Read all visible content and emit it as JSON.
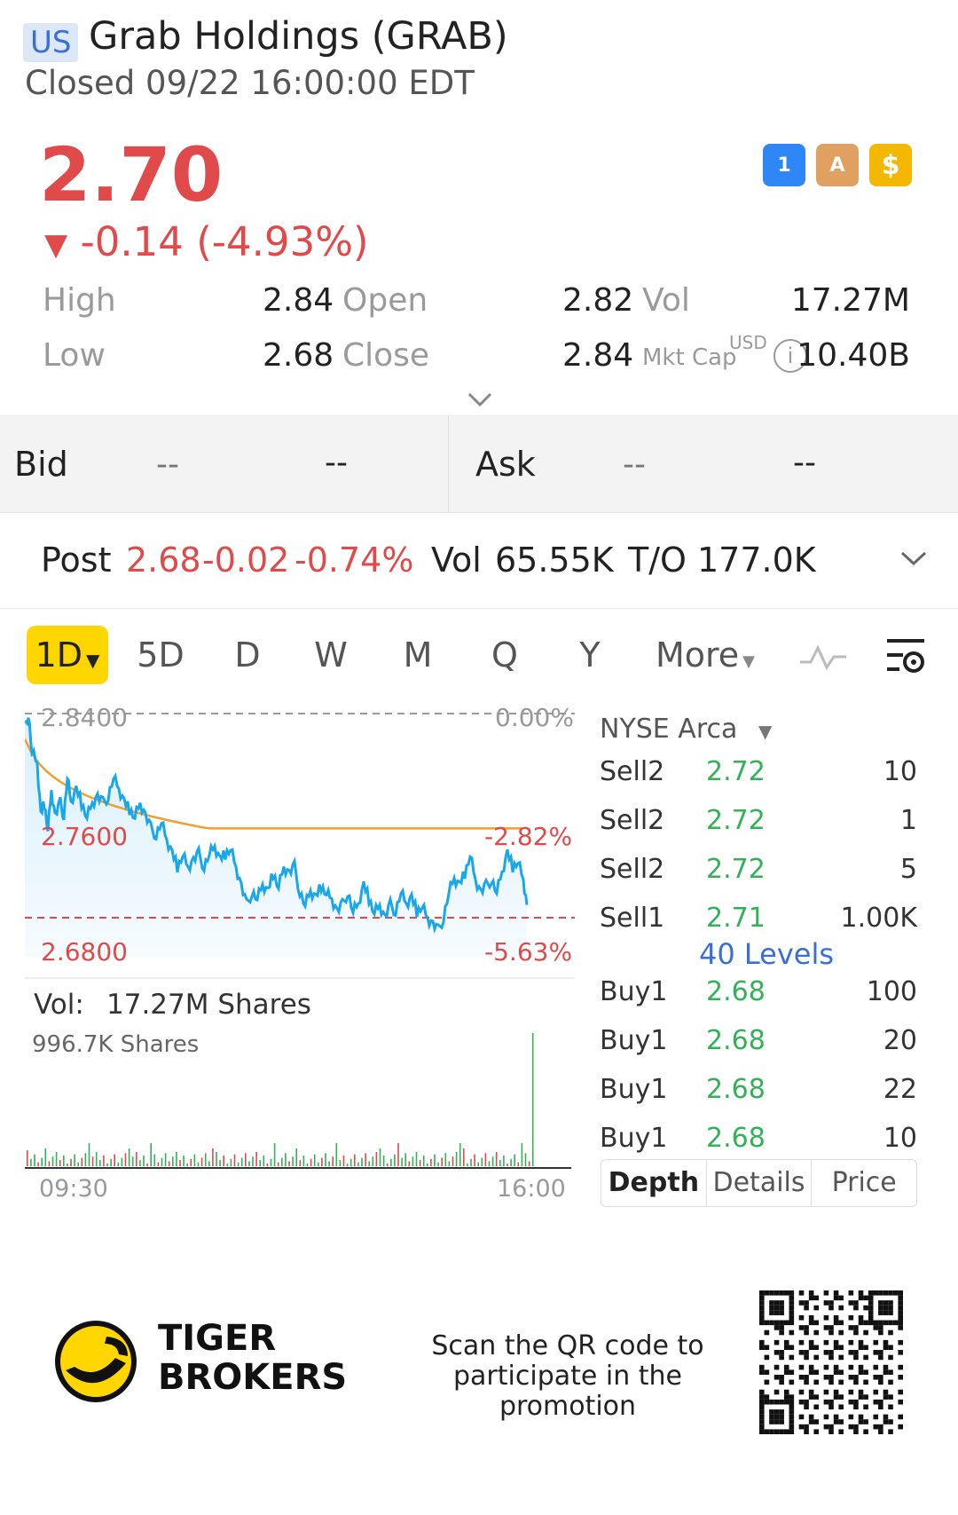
{
  "header": {
    "region": "US",
    "title": "Grab Holdings (GRAB)",
    "status": "Closed 09/22 16:00:00 EDT"
  },
  "quote": {
    "price": "2.70",
    "arrow": "▼",
    "change": "-0.14 (-4.93%)",
    "high_label": "High",
    "high": "2.84",
    "low_label": "Low",
    "low": "2.68",
    "open_label": "Open",
    "open": "2.82",
    "close_label": "Close",
    "close": "2.84",
    "vol_label": "Vol",
    "vol": "17.27M",
    "mktcap_label": "Mkt Cap",
    "mktcap_unit": "USD",
    "mktcap": "10.40B"
  },
  "badges": [
    {
      "name": "lightning-icon",
      "text": "1",
      "color": "#2f86f6"
    },
    {
      "name": "stack-icon",
      "text": "A",
      "color": "#e0a060"
    },
    {
      "name": "dollar-icon",
      "text": "$",
      "color": "#f5b800"
    }
  ],
  "bidask": {
    "bid_label": "Bid",
    "bid_price": "--",
    "bid_size": "--",
    "ask_label": "Ask",
    "ask_price": "--",
    "ask_size": "--"
  },
  "post": {
    "label": "Post",
    "price": "2.68",
    "change": "-0.02",
    "pct": "-0.74%",
    "vol_label": "Vol",
    "vol": "65.55K",
    "to_label": "T/O",
    "to": "177.0K"
  },
  "tabs": [
    "1D",
    "5D",
    "D",
    "W",
    "M",
    "Q",
    "Y",
    "More"
  ],
  "chart": {
    "top_price": "2.8400",
    "top_pct": "0.00%",
    "mid_price": "2.7600",
    "mid_pct": "-2.82%",
    "low_price": "2.6800",
    "low_pct": "-5.63%",
    "vol_label": "Vol:",
    "vol_value": "17.27M Shares",
    "vol_max": "996.7K Shares",
    "time_start": "09:30",
    "time_end": "16:00",
    "price_color": "#1aa7e8",
    "avg_color": "#f0a030",
    "ref_color": "#e04a4a"
  },
  "orderbook": {
    "exchange": "NYSE Arca",
    "levels_label": "40 Levels",
    "sell": [
      {
        "label": "Sell2",
        "price": "2.72",
        "qty": "10"
      },
      {
        "label": "Sell2",
        "price": "2.72",
        "qty": "1"
      },
      {
        "label": "Sell2",
        "price": "2.72",
        "qty": "5"
      },
      {
        "label": "Sell1",
        "price": "2.71",
        "qty": "1.00K"
      }
    ],
    "buy": [
      {
        "label": "Buy1",
        "price": "2.68",
        "qty": "100"
      },
      {
        "label": "Buy1",
        "price": "2.68",
        "qty": "20"
      },
      {
        "label": "Buy1",
        "price": "2.68",
        "qty": "22"
      },
      {
        "label": "Buy1",
        "price": "2.68",
        "qty": "10"
      }
    ],
    "segments": [
      "Depth",
      "Details",
      "Price"
    ]
  },
  "promo": {
    "brand_line1": "TIGER",
    "brand_line2": "BROKERS",
    "text_line1": "Scan the QR code to",
    "text_line2": "participate in the promotion"
  }
}
